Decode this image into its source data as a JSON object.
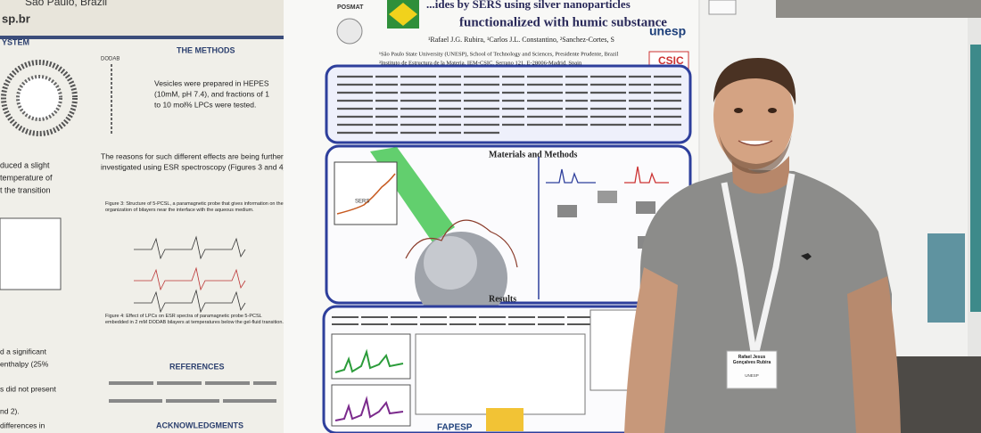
{
  "scene": {
    "left_poster": {
      "header": "São Paulo, Brazil",
      "url": "sp.br",
      "section_left": "YSTEM",
      "section_right": "THE METHODS",
      "dodab": "DODAB",
      "methods_text": [
        "Vesicles were prepared in HEPES",
        "(10mM, pH 7.4), and fractions of 1",
        "to 10 mol% LPCs were tested."
      ],
      "reasons_text": [
        "The reasons for such different effects are being further",
        "investigated using ESR spectroscopy (Figures 3 and 4)."
      ],
      "left_fragments": [
        "duced a slight",
        "temperature of",
        "t the transition",
        "d a significant",
        "enthalpy (25%",
        "s did not present",
        "nd 2).",
        "differences in"
      ],
      "figure3_caption": "Figure 3: Structure of 5-PCSL, a paramagnetic probe that gives information on the organization of bilayers near the interface with the aqueous medium.",
      "figure4_caption": "Figure 4: Effect of LPCs on ESR spectra of paramagnetic probe 5-PCSL embedded in 2 mM DODAB bilayers at temperatures below the gel-fluid transition.",
      "references": "REFERENCES",
      "acknowledgments": "ACKNOWLEDGMENTS"
    },
    "center_poster": {
      "title_line1": "...ides by SERS using silver nanoparticles",
      "title_line2": "functionalized with humic substance",
      "authors": "¹Rafael J.G. Rubira, ¹Carlos J.L. Constantino, ²Sanchez-Cortes, S",
      "affiliation1": "¹São Paulo State University (UNESP), School of Technology and Sciences, Presidente Prudente, Brazil",
      "affiliation2": "²Instituto de Estructura de la Materia, IEM-CSIC, Serrano 121, E-28006-Madrid, Spain",
      "posmat": "POSMAT",
      "unesp": "unesp",
      "csic": "CSIC",
      "materials_methods": "Materials and Methods",
      "sers": "SERS",
      "results": "Results",
      "fapesp": "FAPESP"
    },
    "badge": {
      "name": "Rafael Jesus Gonçalves Rubira",
      "institution": "UNESP"
    }
  }
}
